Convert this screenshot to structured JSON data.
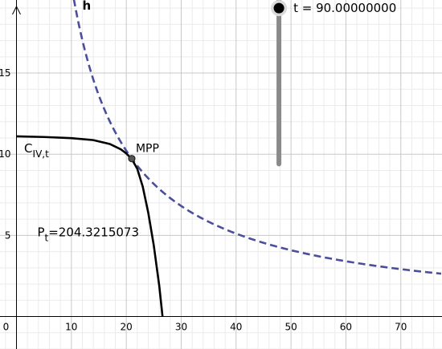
{
  "chart_data": {
    "type": "line",
    "xlim": [
      -3,
      77.5
    ],
    "ylim": [
      -2,
      19.5
    ],
    "grid": true,
    "x_ticks": [
      0,
      10,
      20,
      30,
      40,
      50,
      60,
      70
    ],
    "y_ticks": [
      5,
      10,
      15
    ],
    "x_tick_labels": [
      "0",
      "10",
      "20",
      "30",
      "40",
      "50",
      "60",
      "70"
    ],
    "y_tick_labels": [
      "5",
      "10",
      "15"
    ],
    "series": [
      {
        "name": "h",
        "style": "dashed",
        "color": "#4a4f9c",
        "formula": "y = P / x",
        "x_range": [
          10.1,
          77.5
        ]
      },
      {
        "name": "C",
        "subscript": "IV,t",
        "style": "solid",
        "color": "#000000",
        "points": [
          [
            0,
            11.1
          ],
          [
            5,
            11.06
          ],
          [
            10,
            10.99
          ],
          [
            14,
            10.87
          ],
          [
            17,
            10.63
          ],
          [
            19,
            10.3
          ],
          [
            20,
            10.05
          ],
          [
            21,
            9.7
          ],
          [
            22,
            9.1
          ],
          [
            23,
            8.0
          ],
          [
            24,
            6.4
          ],
          [
            25,
            4.4
          ],
          [
            26,
            1.9
          ],
          [
            26.6,
            0
          ]
        ]
      }
    ],
    "points": [
      {
        "name": "MPP",
        "x": 21.0,
        "y": 9.73
      }
    ],
    "annotations": {
      "power_prefix": "P",
      "power_subscript": "t",
      "power_value": "=204.3215073"
    },
    "slider": {
      "label": "t = 90.00000000",
      "value": 90,
      "min": 0,
      "max": 90,
      "x": 47.8,
      "y_top": 19.0,
      "y_bottom": 9.4
    }
  }
}
